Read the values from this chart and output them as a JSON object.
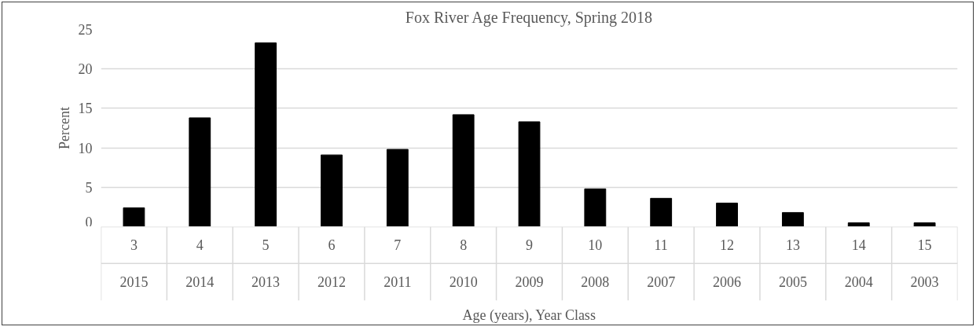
{
  "chart_data": {
    "type": "bar",
    "title": "Fox River Age Frequency, Spring 2018",
    "xlabel": "Age (years), Year Class",
    "ylabel": "Percent",
    "categories": [
      "3",
      "4",
      "5",
      "6",
      "7",
      "8",
      "9",
      "10",
      "11",
      "12",
      "13",
      "14",
      "15"
    ],
    "annotations": [
      "2015",
      "2014",
      "2013",
      "2012",
      "2011",
      "2010",
      "2009",
      "2008",
      "2007",
      "2006",
      "2005",
      "2004",
      "2003"
    ],
    "values": [
      2.4,
      13.8,
      23.3,
      9.1,
      9.8,
      14.2,
      13.3,
      4.8,
      3.6,
      3.0,
      1.8,
      0.5,
      0.5
    ],
    "color": "#000000",
    "ylim": [
      0,
      25
    ],
    "yticks": [
      0,
      5,
      10,
      15,
      20,
      25
    ],
    "grid": "y"
  }
}
